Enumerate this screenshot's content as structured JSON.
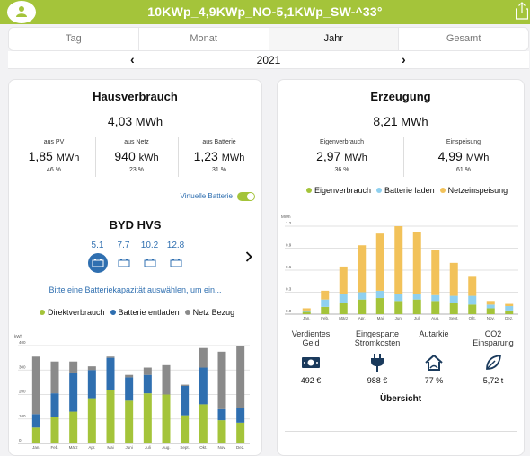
{
  "app": {
    "title": "10KWp_4,9KWp_NO-5,1KWp_SW-^33°",
    "colors": {
      "accent": "#a4c43a",
      "blue": "#2f6fb0",
      "gray": "#8a8a8a",
      "lightblue": "#8fd0ef",
      "orange": "#f2c25a"
    }
  },
  "tabs": [
    {
      "label": "Tag",
      "active": false
    },
    {
      "label": "Monat",
      "active": false
    },
    {
      "label": "Jahr",
      "active": true
    },
    {
      "label": "Gesamt",
      "active": false
    }
  ],
  "period": {
    "year": "2021",
    "prev": "‹",
    "next": "›"
  },
  "hausverbrauch": {
    "title": "Hausverbrauch",
    "total_value": "4,03",
    "total_unit": "MWh",
    "stats": [
      {
        "label": "aus PV",
        "value": "1,85",
        "unit": "MWh",
        "pct": "46 %"
      },
      {
        "label": "aus Netz",
        "value": "940",
        "unit": "kWh",
        "pct": "23 %"
      },
      {
        "label": "aus Batterie",
        "value": "1,23",
        "unit": "MWh",
        "pct": "31 %"
      }
    ],
    "virtual_battery_label": "Virtuelle Batterie",
    "virtual_battery_on": true,
    "battery_title": "BYD HVS",
    "batteries": [
      {
        "label": "5.1",
        "selected": true
      },
      {
        "label": "7.7",
        "selected": false
      },
      {
        "label": "10.2",
        "selected": false
      },
      {
        "label": "12.8",
        "selected": false
      }
    ],
    "battery_hint": "Bitte eine Batteriekapazität auswählen, um ein...",
    "legend": [
      "Direktverbrauch",
      "Batterie entladen",
      "Netz Bezug"
    ]
  },
  "erzeugung": {
    "title": "Erzeugung",
    "total_value": "8,21",
    "total_unit": "MWh",
    "stats": [
      {
        "label": "Eigenverbrauch",
        "value": "2,97",
        "unit": "MWh",
        "pct": "36 %"
      },
      {
        "label": "Einspeisung",
        "value": "4,99",
        "unit": "MWh",
        "pct": "61 %"
      }
    ],
    "legend": [
      "Eigenverbrauch",
      "Batterie laden",
      "Netzeinspeisung"
    ],
    "kpis": [
      {
        "label": "Verdientes Geld",
        "icon": "money-icon",
        "value": "492 €"
      },
      {
        "label": "Eingesparte Stromkosten",
        "icon": "plug-icon",
        "value": "988 €"
      },
      {
        "label": "Autarkie",
        "icon": "house-icon",
        "value": "77 %"
      },
      {
        "label": "CO2 Einsparung",
        "icon": "leaf-icon",
        "value": "5,72 t"
      }
    ],
    "overview_title": "Übersicht"
  },
  "chart_data": [
    {
      "type": "bar",
      "stacked": true,
      "ylabel": "kWh",
      "ylim": [
        0,
        400
      ],
      "yticks": [
        0,
        100,
        200,
        300,
        400
      ],
      "categories": [
        "Jan.",
        "Feb.",
        "März",
        "Apr.",
        "Mai",
        "Juni",
        "Juli",
        "Aug.",
        "Sept.",
        "Okt.",
        "Nov.",
        "Dez."
      ],
      "series": [
        {
          "name": "Direktverbrauch",
          "color": "#a4c43a",
          "values": [
            65,
            110,
            130,
            185,
            220,
            175,
            205,
            200,
            115,
            160,
            95,
            85
          ]
        },
        {
          "name": "Batterie entladen",
          "color": "#2f6fb0",
          "values": [
            55,
            95,
            160,
            115,
            130,
            95,
            75,
            0,
            120,
            150,
            45,
            60
          ]
        },
        {
          "name": "Netz Bezug",
          "color": "#8a8a8a",
          "values": [
            235,
            130,
            45,
            15,
            5,
            10,
            30,
            120,
            5,
            80,
            235,
            255
          ]
        }
      ]
    },
    {
      "type": "bar",
      "stacked": true,
      "ylabel": "MWh",
      "ylim": [
        0,
        1.2
      ],
      "yticks": [
        0.0,
        0.3,
        0.6,
        0.9,
        1.2
      ],
      "categories": [
        "Jan.",
        "Feb.",
        "März",
        "Apr.",
        "Mai",
        "Juni",
        "Juli",
        "Aug.",
        "Sept.",
        "Okt.",
        "Nov.",
        "Dez."
      ],
      "series": [
        {
          "name": "Eigenverbrauch",
          "color": "#a4c43a",
          "values": [
            0.03,
            0.1,
            0.15,
            0.2,
            0.22,
            0.18,
            0.2,
            0.18,
            0.15,
            0.13,
            0.08,
            0.05
          ]
        },
        {
          "name": "Batterie laden",
          "color": "#8fd0ef",
          "values": [
            0.02,
            0.1,
            0.12,
            0.1,
            0.1,
            0.1,
            0.08,
            0.08,
            0.1,
            0.12,
            0.05,
            0.06
          ]
        },
        {
          "name": "Netzeinspeisung",
          "color": "#f2c25a",
          "values": [
            0.03,
            0.12,
            0.38,
            0.64,
            0.78,
            0.92,
            0.84,
            0.62,
            0.45,
            0.26,
            0.05,
            0.03
          ]
        }
      ]
    }
  ]
}
